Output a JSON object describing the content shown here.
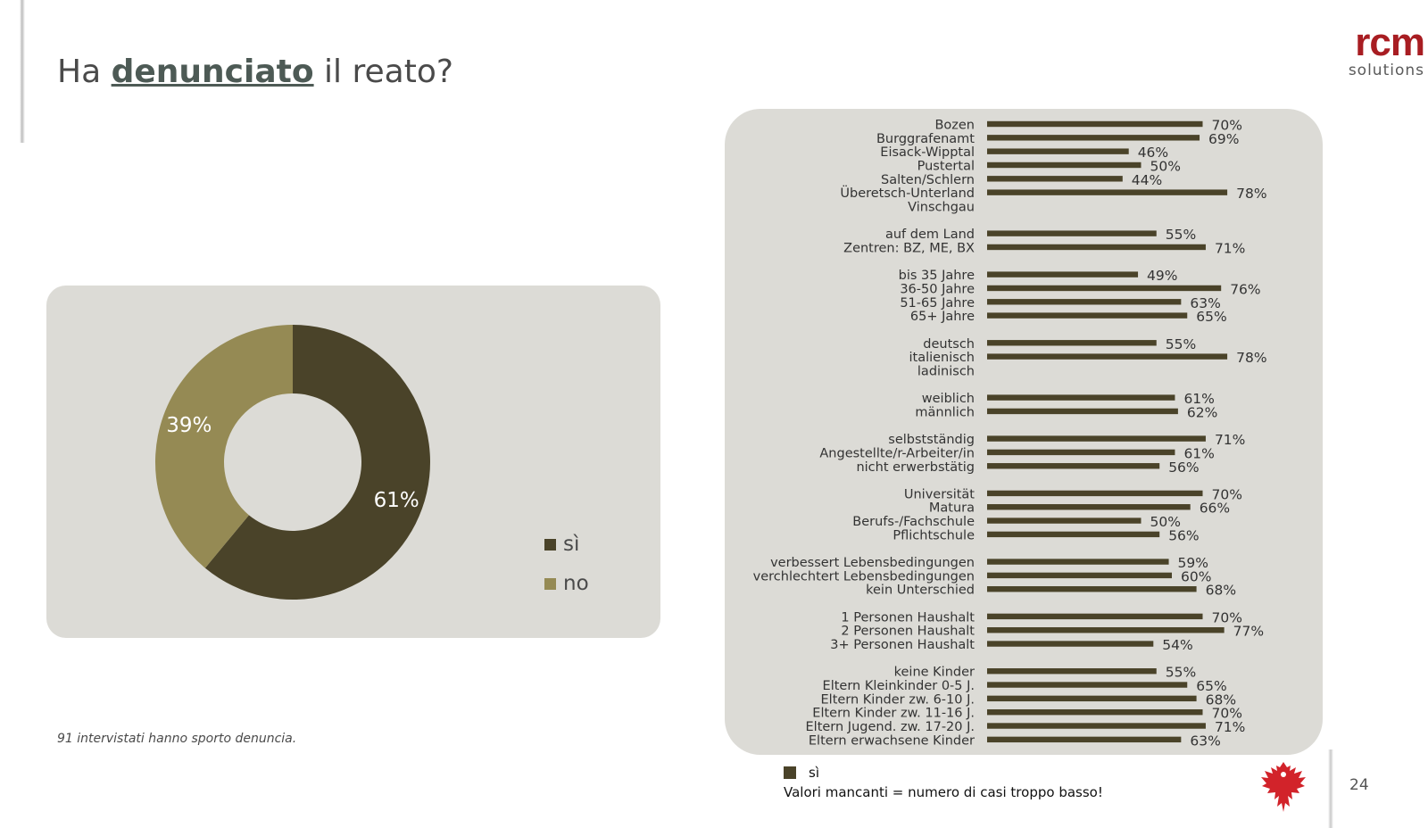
{
  "slide": {
    "title_before": "Ha",
    "title_emphasis": "denunciato",
    "title_after": "il reato?",
    "logo_main": "rcm",
    "logo_sub": "solutions",
    "footnote": "91 intervistati hanno sporto denuncia.",
    "missing_note": "Valori mancanti = numero di casi troppo basso!",
    "page_number": "24"
  },
  "colors": {
    "si": "#4a4329",
    "no": "#958a54",
    "panel": "#dcdbd6",
    "logo_red": "#a81d22"
  },
  "chart_data": [
    {
      "type": "pie",
      "variant": "donut",
      "slices": [
        {
          "label": "sì",
          "value": 61,
          "display": "61%"
        },
        {
          "label": "no",
          "value": 39,
          "display": "39%"
        }
      ],
      "legend": [
        "sì",
        "no"
      ]
    },
    {
      "type": "bar",
      "orientation": "horizontal",
      "series_name": "sì",
      "xlim": [
        0,
        100
      ],
      "groups": [
        {
          "rows": [
            {
              "label": "Bozen",
              "value": 70
            },
            {
              "label": "Burggrafenamt",
              "value": 69
            },
            {
              "label": "Eisack-Wipptal",
              "value": 46
            },
            {
              "label": "Pustertal",
              "value": 50
            },
            {
              "label": "Salten/Schlern",
              "value": 44
            },
            {
              "label": "Überetsch-Unterland",
              "value": 78
            },
            {
              "label": "Vinschgau",
              "value": null
            }
          ]
        },
        {
          "rows": [
            {
              "label": "auf dem Land",
              "value": 55
            },
            {
              "label": "Zentren: BZ, ME, BX",
              "value": 71
            }
          ]
        },
        {
          "rows": [
            {
              "label": "bis 35 Jahre",
              "value": 49
            },
            {
              "label": "36-50 Jahre",
              "value": 76
            },
            {
              "label": "51-65 Jahre",
              "value": 63
            },
            {
              "label": "65+ Jahre",
              "value": 65
            }
          ]
        },
        {
          "rows": [
            {
              "label": "deutsch",
              "value": 55
            },
            {
              "label": "italienisch",
              "value": 78
            },
            {
              "label": "ladinisch",
              "value": null
            }
          ]
        },
        {
          "rows": [
            {
              "label": "weiblich",
              "value": 61
            },
            {
              "label": "männlich",
              "value": 62
            }
          ]
        },
        {
          "rows": [
            {
              "label": "selbstständig",
              "value": 71
            },
            {
              "label": "Angestellte/r-Arbeiter/in",
              "value": 61
            },
            {
              "label": "nicht erwerbstätig",
              "value": 56
            }
          ]
        },
        {
          "rows": [
            {
              "label": "Universität",
              "value": 70
            },
            {
              "label": "Matura",
              "value": 66
            },
            {
              "label": "Berufs-/Fachschule",
              "value": 50
            },
            {
              "label": "Pflichtschule",
              "value": 56
            }
          ]
        },
        {
          "rows": [
            {
              "label": "verbessert Lebensbedingungen",
              "value": 59
            },
            {
              "label": "verchlechtert Lebensbedingungen",
              "value": 60
            },
            {
              "label": "kein Unterschied",
              "value": 68
            }
          ]
        },
        {
          "rows": [
            {
              "label": "1 Personen Haushalt",
              "value": 70
            },
            {
              "label": "2 Personen Haushalt",
              "value": 77
            },
            {
              "label": "3+ Personen Haushalt",
              "value": 54
            }
          ]
        },
        {
          "rows": [
            {
              "label": "keine Kinder",
              "value": 55
            },
            {
              "label": "Eltern Kleinkinder 0-5 J.",
              "value": 65
            },
            {
              "label": "Eltern Kinder zw. 6-10 J.",
              "value": 68
            },
            {
              "label": "Eltern Kinder zw. 11-16 J.",
              "value": 70
            },
            {
              "label": "Eltern Jugend. zw. 17-20 J.",
              "value": 71
            },
            {
              "label": "Eltern erwachsene Kinder",
              "value": 63
            }
          ]
        }
      ]
    }
  ]
}
